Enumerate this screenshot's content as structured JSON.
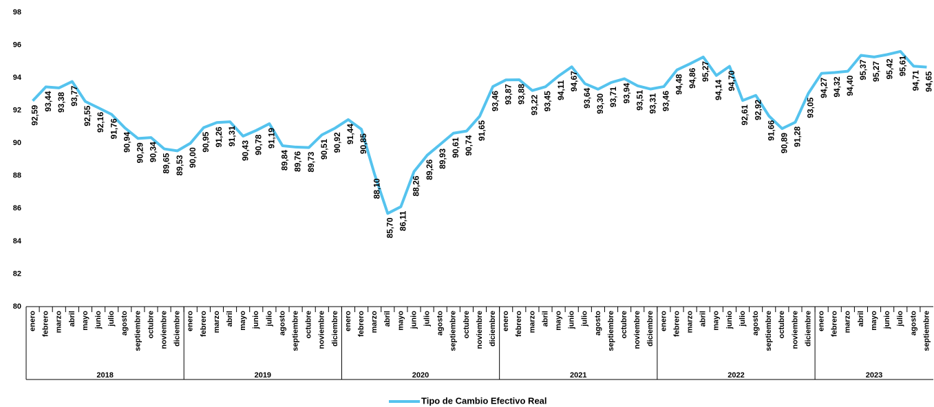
{
  "chart_data": {
    "type": "line",
    "categories": [
      "enero",
      "febrero",
      "marzo",
      "abril",
      "mayo",
      "junio",
      "julio",
      "agosto",
      "septiembre",
      "octubre",
      "noviembre",
      "diciembre",
      "enero",
      "febrero",
      "marzo",
      "abril",
      "mayo",
      "junio",
      "julio",
      "agosto",
      "septiembre",
      "octubre",
      "noviembre",
      "diciembre",
      "enero",
      "febrero",
      "marzo",
      "abril",
      "mayo",
      "junio",
      "julio",
      "agosto",
      "septiembre",
      "octubre",
      "noviembre",
      "diciembre",
      "enero",
      "febrero",
      "marzo",
      "abril",
      "mayo",
      "junio",
      "julio",
      "agosto",
      "septiembre",
      "octubre",
      "noviembre",
      "diciembre",
      "enero",
      "febrero",
      "marzo",
      "abril",
      "mayo",
      "junio",
      "julio",
      "agosto",
      "septiembre",
      "octubre",
      "noviembre",
      "diciembre",
      "enero",
      "febrero",
      "marzo",
      "abril",
      "mayo",
      "junio",
      "julio",
      "agosto",
      "septiembre"
    ],
    "year_groups": [
      "2018",
      "2019",
      "2020",
      "2021",
      "2022",
      "2023"
    ],
    "series": [
      {
        "name": "Tipo de Cambio Efectivo Real",
        "color": "#55c3ee",
        "values": [
          92.59,
          93.44,
          93.38,
          93.77,
          92.55,
          92.16,
          91.76,
          90.94,
          90.29,
          90.34,
          89.65,
          89.53,
          90.0,
          90.95,
          91.26,
          91.31,
          90.43,
          90.78,
          91.19,
          89.84,
          89.76,
          89.73,
          90.51,
          90.92,
          91.44,
          90.85,
          88.1,
          85.7,
          86.11,
          88.26,
          89.26,
          89.93,
          90.61,
          90.74,
          91.65,
          93.46,
          93.87,
          93.88,
          93.22,
          93.45,
          94.11,
          94.67,
          93.64,
          93.3,
          93.71,
          93.94,
          93.51,
          93.31,
          93.46,
          94.48,
          94.86,
          95.27,
          94.14,
          94.7,
          92.61,
          92.92,
          91.66,
          90.89,
          91.28,
          93.05,
          94.27,
          94.32,
          94.4,
          95.37,
          95.27,
          95.42,
          95.61,
          94.71,
          94.65
        ],
        "value_labels": [
          "92,59",
          "93,44",
          "93,38",
          "93,77",
          "92,55",
          "92,16",
          "91,76",
          "90,94",
          "90,29",
          "90,34",
          "89,65",
          "89,53",
          "90,00",
          "90,95",
          "91,26",
          "91,31",
          "90,43",
          "90,78",
          "91,19",
          "89,84",
          "89,76",
          "89,73",
          "90,51",
          "90,92",
          "91,44",
          "90,85",
          "88,10",
          "85,70",
          "86,11",
          "88,26",
          "89,26",
          "89,93",
          "90,61",
          "90,74",
          "91,65",
          "93,46",
          "93,87",
          "93,88",
          "93,22",
          "93,45",
          "94,11",
          "94,67",
          "93,64",
          "93,30",
          "93,71",
          "93,94",
          "93,51",
          "93,31",
          "93,46",
          "94,48",
          "94,86",
          "95,27",
          "94,14",
          "94,70",
          "92,61",
          "92,92",
          "91,66",
          "90,89",
          "91,28",
          "93,05",
          "94,27",
          "94,32",
          "94,40",
          "95,37",
          "95,27",
          "95,42",
          "95,61",
          "94,71",
          "94,65"
        ]
      }
    ],
    "ylim": [
      80,
      98
    ],
    "yticks": [
      80,
      82,
      84,
      86,
      88,
      90,
      92,
      94,
      96,
      98
    ],
    "legend": "bottom"
  }
}
